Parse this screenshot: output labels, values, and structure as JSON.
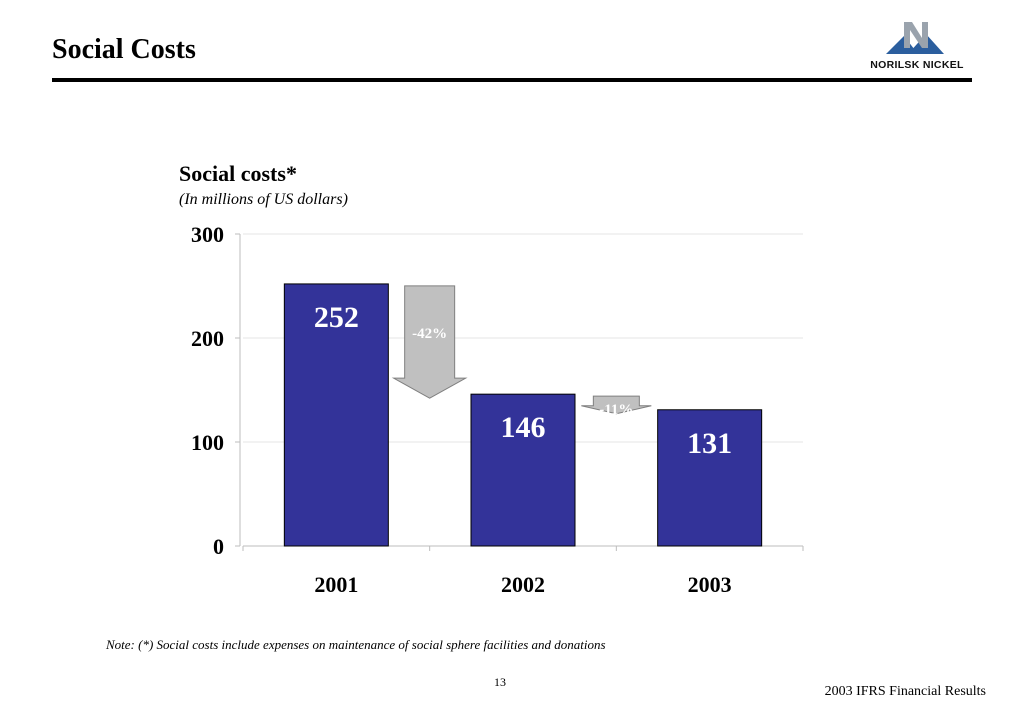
{
  "slide": {
    "title": "Social Costs",
    "logo_text": "NORILSK  NICKEL",
    "note": "Note: (*) Social costs include expenses on maintenance of social sphere facilities and donations",
    "page_number": "13",
    "footer": "2003 IFRS Financial Results"
  },
  "chart_data": {
    "type": "bar",
    "title": "Social costs*",
    "subtitle": "(In millions of US dollars)",
    "categories": [
      "2001",
      "2002",
      "2003"
    ],
    "values": [
      252,
      146,
      131
    ],
    "data_labels": [
      "252",
      "146",
      "131"
    ],
    "ylim": [
      0,
      300
    ],
    "yticks": [
      0,
      100,
      200,
      300
    ],
    "grid": true,
    "bar_color": "#333399",
    "arrow_color": "#c0c0c0",
    "annotations": [
      {
        "label": "-42%",
        "from": "2001",
        "to": "2002"
      },
      {
        "label": "-11%",
        "from": "2002",
        "to": "2003"
      }
    ]
  }
}
